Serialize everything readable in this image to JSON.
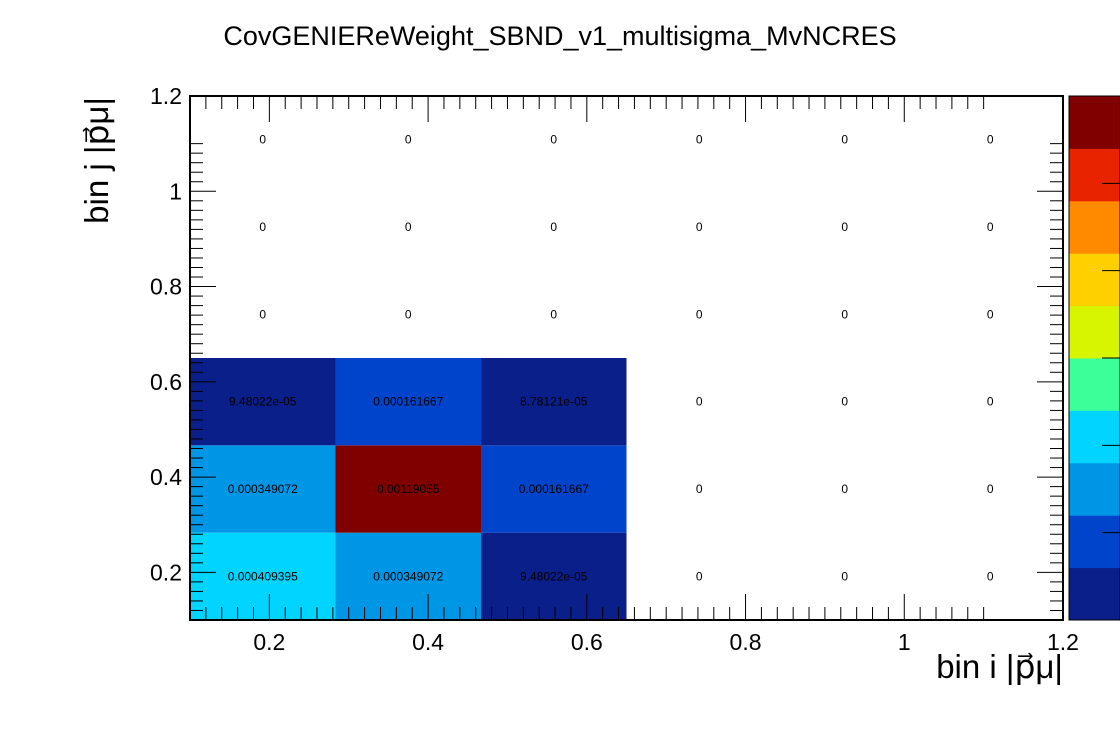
{
  "chart_data": {
    "type": "heatmap",
    "title": "CovGENIEReWeight_SBND_v1_multisigma_MvNCRES",
    "xlabel": "bin i |p⃗μ|",
    "ylabel": "bin j |p⃗μ|",
    "xlim": [
      0.1,
      1.2
    ],
    "ylim": [
      0.1,
      1.2
    ],
    "x_bin_edges": [
      0.1,
      0.2833,
      0.4667,
      0.65,
      0.8333,
      1.0167,
      1.2
    ],
    "y_bin_edges": [
      0.1,
      0.2833,
      0.4667,
      0.65,
      0.8333,
      1.0167,
      1.2
    ],
    "xticks": [
      "0.2",
      "0.4",
      "0.6",
      "0.8",
      "1",
      "1.2"
    ],
    "yticks": [
      "0.2",
      "0.4",
      "0.6",
      "0.8",
      "1",
      "1.2"
    ],
    "cells": [
      [
        "0.000409395",
        "0.000349072",
        "9.48022e-05",
        "0",
        "0",
        "0"
      ],
      [
        "0.000349072",
        "0.00119055",
        "0.000161667",
        "0",
        "0",
        "0"
      ],
      [
        "9.48022e-05",
        "0.000161667",
        "8.78121e-05",
        "0",
        "0",
        "0"
      ],
      [
        "0",
        "0",
        "0",
        "0",
        "0",
        "0"
      ],
      [
        "0",
        "0",
        "0",
        "0",
        "0",
        "0"
      ],
      [
        "0",
        "0",
        "0",
        "0",
        "0",
        "0"
      ]
    ],
    "zlim": [
      0,
      0.00119055
    ],
    "colormap": "rainbow",
    "palette_colorbar": true,
    "grid": false,
    "legend": "none"
  },
  "colors": {
    "cmap": [
      "#0b1f8a",
      "#0044cc",
      "#0096e6",
      "#00d4ff",
      "#3dff9a",
      "#d7f500",
      "#ffd000",
      "#ff8a00",
      "#e82400",
      "#800000"
    ]
  }
}
